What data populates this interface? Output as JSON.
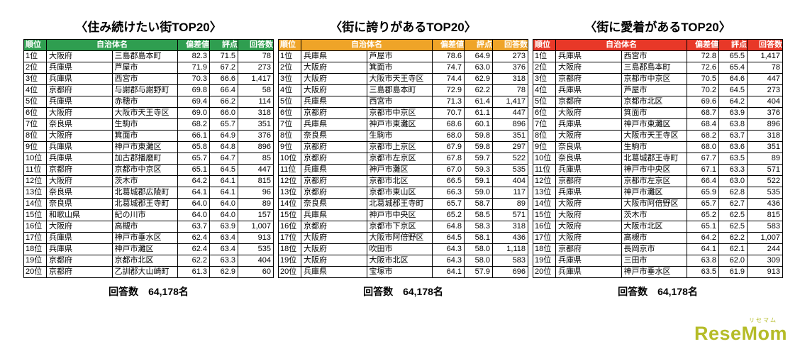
{
  "footer": {
    "label": "回答数",
    "value": "64,178名"
  },
  "logo": {
    "kana": "リセマム",
    "text": "ReseMom"
  },
  "chart_data": [
    {
      "type": "table",
      "title": "〈住み続けたい街TOP20〉",
      "header_color": "#2f9e50",
      "columns": {
        "rank": "順位",
        "municipality": "自治体名",
        "deviation": "偏差値",
        "score": "評点",
        "responses": "回答数"
      },
      "rows": [
        [
          "1位",
          "大阪府",
          "三島郡島本町",
          "82.3",
          "71.5",
          "78"
        ],
        [
          "2位",
          "兵庫県",
          "芦屋市",
          "71.9",
          "67.2",
          "273"
        ],
        [
          "3位",
          "兵庫県",
          "西宮市",
          "70.3",
          "66.6",
          "1,417"
        ],
        [
          "4位",
          "京都府",
          "与謝郡与謝野町",
          "69.8",
          "66.4",
          "58"
        ],
        [
          "5位",
          "兵庫県",
          "赤穂市",
          "69.4",
          "66.2",
          "114"
        ],
        [
          "6位",
          "大阪府",
          "大阪市天王寺区",
          "69.0",
          "66.0",
          "318"
        ],
        [
          "7位",
          "奈良県",
          "生駒市",
          "68.2",
          "65.7",
          "351"
        ],
        [
          "8位",
          "大阪府",
          "箕面市",
          "66.1",
          "64.9",
          "376"
        ],
        [
          "9位",
          "兵庫県",
          "神戸市東灘区",
          "65.8",
          "64.8",
          "896"
        ],
        [
          "10位",
          "兵庫県",
          "加古郡播磨町",
          "65.7",
          "64.7",
          "85"
        ],
        [
          "11位",
          "京都府",
          "京都市中京区",
          "65.1",
          "64.5",
          "447"
        ],
        [
          "12位",
          "大阪府",
          "茨木市",
          "64.2",
          "64.1",
          "815"
        ],
        [
          "13位",
          "奈良県",
          "北葛城郡広陵町",
          "64.1",
          "64.1",
          "96"
        ],
        [
          "14位",
          "奈良県",
          "北葛城郡王寺町",
          "64.0",
          "64.0",
          "89"
        ],
        [
          "15位",
          "和歌山県",
          "紀の川市",
          "64.0",
          "64.0",
          "157"
        ],
        [
          "16位",
          "大阪府",
          "高槻市",
          "63.7",
          "63.9",
          "1,007"
        ],
        [
          "17位",
          "兵庫県",
          "神戸市垂水区",
          "62.4",
          "63.4",
          "913"
        ],
        [
          "18位",
          "兵庫県",
          "神戸市灘区",
          "62.4",
          "63.4",
          "535"
        ],
        [
          "19位",
          "京都府",
          "京都市北区",
          "62.2",
          "63.3",
          "404"
        ],
        [
          "20位",
          "京都府",
          "乙訓郡大山崎町",
          "61.3",
          "62.9",
          "60"
        ]
      ]
    },
    {
      "type": "table",
      "title": "〈街に誇りがあるTOP20〉",
      "header_color": "#efa428",
      "columns": {
        "rank": "順位",
        "municipality": "自治体名",
        "deviation": "偏差値",
        "score": "評点",
        "responses": "回答数"
      },
      "rows": [
        [
          "1位",
          "兵庫県",
          "芦屋市",
          "78.6",
          "64.9",
          "273"
        ],
        [
          "2位",
          "大阪府",
          "箕面市",
          "74.7",
          "63.0",
          "376"
        ],
        [
          "3位",
          "大阪府",
          "大阪市天王寺区",
          "74.4",
          "62.9",
          "318"
        ],
        [
          "4位",
          "大阪府",
          "三島郡島本町",
          "72.9",
          "62.2",
          "78"
        ],
        [
          "5位",
          "兵庫県",
          "西宮市",
          "71.3",
          "61.4",
          "1,417"
        ],
        [
          "6位",
          "京都府",
          "京都市中京区",
          "70.7",
          "61.1",
          "447"
        ],
        [
          "7位",
          "兵庫県",
          "神戸市東灘区",
          "68.6",
          "60.1",
          "896"
        ],
        [
          "8位",
          "奈良県",
          "生駒市",
          "68.0",
          "59.8",
          "351"
        ],
        [
          "9位",
          "京都府",
          "京都市上京区",
          "67.9",
          "59.8",
          "297"
        ],
        [
          "10位",
          "京都府",
          "京都市左京区",
          "67.8",
          "59.7",
          "522"
        ],
        [
          "11位",
          "兵庫県",
          "神戸市灘区",
          "67.0",
          "59.3",
          "535"
        ],
        [
          "12位",
          "京都府",
          "京都市北区",
          "66.5",
          "59.1",
          "404"
        ],
        [
          "13位",
          "京都府",
          "京都市東山区",
          "66.3",
          "59.0",
          "117"
        ],
        [
          "14位",
          "奈良県",
          "北葛城郡王寺町",
          "65.7",
          "58.7",
          "89"
        ],
        [
          "15位",
          "兵庫県",
          "神戸市中央区",
          "65.2",
          "58.5",
          "571"
        ],
        [
          "16位",
          "京都府",
          "京都市下京区",
          "64.8",
          "58.3",
          "318"
        ],
        [
          "17位",
          "大阪府",
          "大阪市阿倍野区",
          "64.5",
          "58.1",
          "436"
        ],
        [
          "18位",
          "大阪府",
          "吹田市",
          "64.3",
          "58.0",
          "1,118"
        ],
        [
          "19位",
          "大阪府",
          "大阪市北区",
          "64.3",
          "58.0",
          "583"
        ],
        [
          "20位",
          "兵庫県",
          "宝塚市",
          "64.1",
          "57.9",
          "696"
        ]
      ]
    },
    {
      "type": "table",
      "title": "〈街に愛着があるTOP20〉",
      "header_color": "#e83828",
      "columns": {
        "rank": "順位",
        "municipality": "自治体名",
        "deviation": "偏差値",
        "score": "評点",
        "responses": "回答数"
      },
      "rows": [
        [
          "1位",
          "兵庫県",
          "西宮市",
          "72.8",
          "65.5",
          "1,417"
        ],
        [
          "2位",
          "大阪府",
          "三島郡島本町",
          "72.6",
          "65.4",
          "78"
        ],
        [
          "3位",
          "京都府",
          "京都市中京区",
          "70.5",
          "64.6",
          "447"
        ],
        [
          "4位",
          "兵庫県",
          "芦屋市",
          "70.2",
          "64.5",
          "273"
        ],
        [
          "5位",
          "京都府",
          "京都市北区",
          "69.6",
          "64.2",
          "404"
        ],
        [
          "6位",
          "大阪府",
          "箕面市",
          "68.7",
          "63.9",
          "376"
        ],
        [
          "7位",
          "兵庫県",
          "神戸市東灘区",
          "68.4",
          "63.8",
          "896"
        ],
        [
          "8位",
          "大阪府",
          "大阪市天王寺区",
          "68.2",
          "63.7",
          "318"
        ],
        [
          "9位",
          "奈良県",
          "生駒市",
          "68.0",
          "63.6",
          "351"
        ],
        [
          "10位",
          "奈良県",
          "北葛城郡王寺町",
          "67.7",
          "63.5",
          "89"
        ],
        [
          "11位",
          "兵庫県",
          "神戸市中央区",
          "67.1",
          "63.3",
          "571"
        ],
        [
          "12位",
          "京都府",
          "京都市左京区",
          "66.4",
          "63.0",
          "522"
        ],
        [
          "13位",
          "兵庫県",
          "神戸市灘区",
          "65.9",
          "62.8",
          "535"
        ],
        [
          "14位",
          "大阪府",
          "大阪市阿倍野区",
          "65.7",
          "62.7",
          "436"
        ],
        [
          "15位",
          "大阪府",
          "茨木市",
          "65.2",
          "62.5",
          "815"
        ],
        [
          "16位",
          "大阪府",
          "大阪市北区",
          "65.1",
          "62.5",
          "583"
        ],
        [
          "17位",
          "大阪府",
          "高槻市",
          "64.2",
          "62.2",
          "1,007"
        ],
        [
          "18位",
          "京都府",
          "長岡京市",
          "64.1",
          "62.1",
          "244"
        ],
        [
          "19位",
          "兵庫県",
          "三田市",
          "63.8",
          "62.0",
          "309"
        ],
        [
          "20位",
          "兵庫県",
          "神戸市垂水区",
          "63.5",
          "61.9",
          "913"
        ]
      ]
    }
  ]
}
